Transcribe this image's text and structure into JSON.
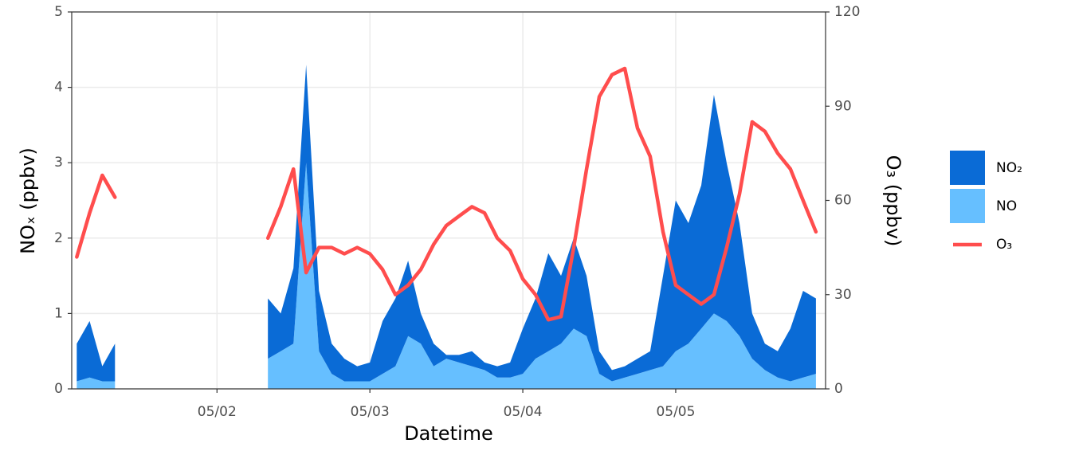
{
  "chart_data": {
    "type": "area",
    "x_label": "Datetime",
    "y_label": "NOₓ (ppbv)",
    "y2_label": "O₃ (ppbv)",
    "x": [
      1.083,
      1.167,
      1.25,
      1.333,
      1.417,
      1.5,
      1.583,
      1.667,
      1.75,
      1.833,
      1.917,
      2.0,
      2.083,
      2.167,
      2.25,
      2.333,
      2.417,
      2.5,
      2.583,
      2.667,
      2.75,
      2.833,
      2.917,
      3.0,
      3.083,
      3.167,
      3.25,
      3.333,
      3.417,
      3.5,
      3.583,
      3.667,
      3.75,
      3.833,
      3.917,
      4.0,
      4.083,
      4.167,
      4.25,
      4.333,
      4.417,
      4.5,
      4.583,
      4.667,
      4.75,
      4.833,
      4.917,
      5.0,
      5.083,
      5.167,
      5.25,
      5.333,
      5.417,
      5.5,
      5.583,
      5.667,
      5.75,
      5.833,
      5.917
    ],
    "series": [
      {
        "name": "NO₂",
        "type": "area",
        "color": "#0a6bd6",
        "values": [
          0.5,
          0.75,
          0.2,
          0.5,
          null,
          null,
          null,
          null,
          null,
          null,
          null,
          null,
          null,
          null,
          null,
          0.8,
          0.5,
          1.0,
          1.3,
          0.8,
          0.4,
          0.3,
          0.2,
          0.25,
          0.7,
          0.9,
          1.0,
          0.4,
          0.3,
          0.05,
          0.1,
          0.2,
          0.1,
          0.15,
          0.2,
          0.6,
          0.8,
          1.3,
          0.9,
          1.2,
          0.8,
          0.3,
          0.15,
          0.15,
          0.2,
          0.25,
          1.2,
          2.0,
          1.6,
          1.9,
          2.9,
          2.1,
          1.5,
          0.6,
          0.35,
          0.35,
          0.7,
          1.15,
          1.0
        ]
      },
      {
        "name": "NO",
        "type": "area",
        "color": "#66bfff",
        "values": [
          0.1,
          0.15,
          0.1,
          0.1,
          null,
          null,
          null,
          null,
          null,
          null,
          null,
          null,
          null,
          null,
          null,
          0.4,
          0.5,
          0.6,
          3.0,
          0.5,
          0.2,
          0.1,
          0.1,
          0.1,
          0.2,
          0.3,
          0.7,
          0.6,
          0.3,
          0.4,
          0.35,
          0.3,
          0.25,
          0.15,
          0.15,
          0.2,
          0.4,
          0.5,
          0.6,
          0.8,
          0.7,
          0.2,
          0.1,
          0.15,
          0.2,
          0.25,
          0.3,
          0.5,
          0.6,
          0.8,
          1.0,
          0.9,
          0.7,
          0.4,
          0.25,
          0.15,
          0.1,
          0.15,
          0.2
        ]
      },
      {
        "name": "O₃",
        "type": "line",
        "axis": "y2",
        "color": "#ff4d4d",
        "values": [
          42,
          56,
          68,
          61,
          null,
          null,
          null,
          null,
          null,
          null,
          null,
          null,
          null,
          null,
          null,
          48,
          58,
          70,
          37,
          45,
          45,
          43,
          45,
          43,
          38,
          30,
          33,
          38,
          46,
          52,
          55,
          58,
          56,
          48,
          44,
          35,
          30,
          22,
          23,
          45,
          70,
          93,
          100,
          102,
          83,
          74,
          50,
          33,
          30,
          27,
          30,
          45,
          62,
          85,
          82,
          75,
          70,
          60,
          50
        ]
      }
    ],
    "xlim": [
      1.05,
      5.98
    ],
    "xticks": [
      {
        "value": 2,
        "label": "05/02"
      },
      {
        "value": 3,
        "label": "05/03"
      },
      {
        "value": 4,
        "label": "05/04"
      },
      {
        "value": 5,
        "label": "05/05"
      }
    ],
    "ylim": [
      0,
      5
    ],
    "yticks": [
      0,
      1,
      2,
      3,
      4,
      5
    ],
    "y2lim": [
      0,
      120
    ],
    "y2ticks": [
      0,
      30,
      60,
      90,
      120
    ],
    "grid": true
  }
}
